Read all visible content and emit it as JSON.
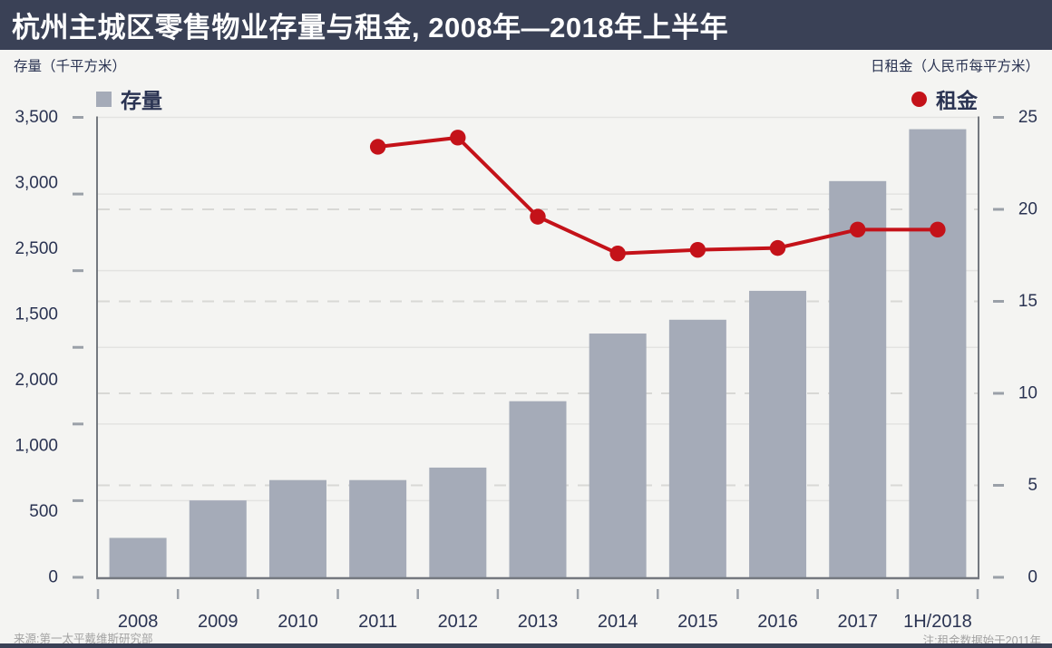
{
  "header": {
    "title": "杭州主城区零售物业存量与租金, 2008年—2018年上半年"
  },
  "left_axis_title": "存量（千平方米）",
  "right_axis_title": "日租金（人民币每平方米）",
  "legend": {
    "stock_label": "存量",
    "rent_label": "租金"
  },
  "footer": {
    "source": "来源:第一太平戴维斯研究部",
    "note": "注:租金数据始于2011年"
  },
  "colors": {
    "header_bg": "#3a4156",
    "background": "#f4f4f2",
    "bar": "#a5abb8",
    "rent_red": "#c41219",
    "text_navy": "#2a3352",
    "grid_solid": "#e3e3e1",
    "grid_dashed": "#d8d8d5",
    "axis_line": "#74787f",
    "tick": "#9aa0a8",
    "footer_gray": "#a2a2a2"
  },
  "chart_data": {
    "type": "bar+line dual-axis",
    "title": "杭州主城区零售物业存量与租金, 2008年—2018年上半年",
    "categories": [
      "2008",
      "2009",
      "2010",
      "2011",
      "2012",
      "2013",
      "2014",
      "2015",
      "2016",
      "2017",
      "1H/2018"
    ],
    "series": [
      {
        "name": "存量",
        "type": "bar",
        "axis": "left",
        "values": [
          300,
          585,
          740,
          740,
          835,
          1340,
          1855,
          1960,
          2180,
          3015,
          3410
        ]
      },
      {
        "name": "租金",
        "type": "line",
        "axis": "right",
        "values": [
          null,
          null,
          null,
          23.4,
          23.9,
          19.6,
          17.6,
          17.8,
          17.9,
          18.9,
          18.9
        ]
      }
    ],
    "left_axis": {
      "title": "存量（千平方米）",
      "ylim": [
        0,
        3500
      ],
      "tick_labels_displayed_top_to_bottom": [
        "3,500",
        "3,000",
        "2,500",
        "1,500",
        "2,000",
        "1,000",
        "500",
        "0"
      ]
    },
    "right_axis": {
      "title": "日租金（人民币每平方米）",
      "ylim": [
        0,
        25
      ],
      "tick_labels_top_to_bottom": [
        "25",
        "20",
        "15",
        "10",
        "5",
        "0"
      ]
    },
    "legend_layout": "存量 top-left, 租金 top-right",
    "grid": "horizontal solid lines (left axis) and horizontal dashed lines at right-axis 5/10/15/20"
  }
}
